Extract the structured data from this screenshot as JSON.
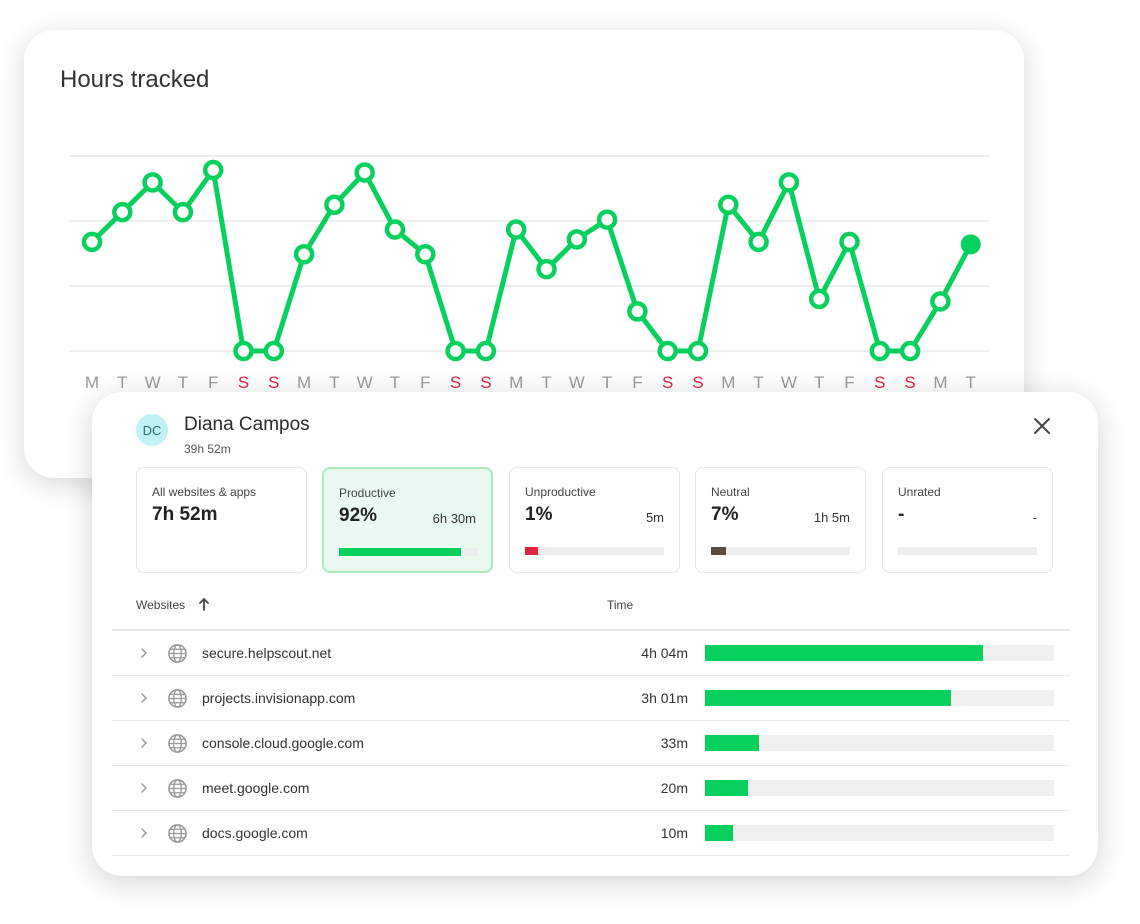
{
  "chart": {
    "title": "Hours tracked"
  },
  "chart_data": {
    "type": "line",
    "title": "Hours tracked",
    "categories": [
      "M",
      "T",
      "W",
      "T",
      "F",
      "S",
      "S",
      "M",
      "T",
      "W",
      "T",
      "F",
      "S",
      "S",
      "M",
      "T",
      "W",
      "T",
      "F",
      "S",
      "S",
      "M",
      "T",
      "W",
      "T",
      "F",
      "S",
      "S",
      "M",
      "T"
    ],
    "weekend_indices": [
      5,
      6,
      12,
      13,
      19,
      20,
      26,
      27
    ],
    "series": [
      {
        "values": [
          7.4,
          8.6,
          9.8,
          8.6,
          10.3,
          3.0,
          3.0,
          6.9,
          8.9,
          10.2,
          7.9,
          6.9,
          3.0,
          3.0,
          7.9,
          6.3,
          7.5,
          8.3,
          4.6,
          3.0,
          3.0,
          8.9,
          7.4,
          9.8,
          5.1,
          7.4,
          3.0,
          3.0,
          5.0,
          7.3
        ]
      }
    ],
    "ylim": [
      3,
      10.3
    ],
    "grid": true,
    "colors": {
      "line": "#08d05d",
      "weekend_tick": "#e0243d",
      "weekday_tick": "#9a9a9a",
      "grid": "#e9e9e9"
    },
    "last_point_filled": true
  },
  "user": {
    "initials": "DC",
    "name": "Diana Campos",
    "total": "39h 52m"
  },
  "stats": [
    {
      "label": "All websites & apps",
      "value": "7h 52m"
    },
    {
      "label": "Productive",
      "value": "92%",
      "duration": "6h 30m",
      "fraction": 0.88,
      "color": "#08d05d"
    },
    {
      "label": "Unproductive",
      "value": "1%",
      "duration": "5m",
      "fraction": 0.09,
      "color": "#e0243d"
    },
    {
      "label": "Neutral",
      "value": "7%",
      "duration": "1h 5m",
      "fraction": 0.11,
      "color": "#5a4a44"
    },
    {
      "label": "Unrated",
      "value": "-",
      "duration": "-",
      "fraction": 0
    }
  ],
  "table": {
    "col_websites": "Websites",
    "col_time": "Time",
    "rows": [
      {
        "site": "secure.helpscout.net",
        "time": "4h 04m",
        "fraction": 0.797
      },
      {
        "site": "projects.invisionapp.com",
        "time": "3h 01m",
        "fraction": 0.705
      },
      {
        "site": "console.cloud.google.com",
        "time": "33m",
        "fraction": 0.155
      },
      {
        "site": "meet.google.com",
        "time": "20m",
        "fraction": 0.123
      },
      {
        "site": "docs.google.com",
        "time": "10m",
        "fraction": 0.08
      }
    ]
  }
}
